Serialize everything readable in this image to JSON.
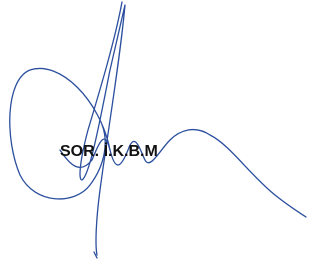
{
  "stamp_text": "SOR. İ.K.B.M"
}
